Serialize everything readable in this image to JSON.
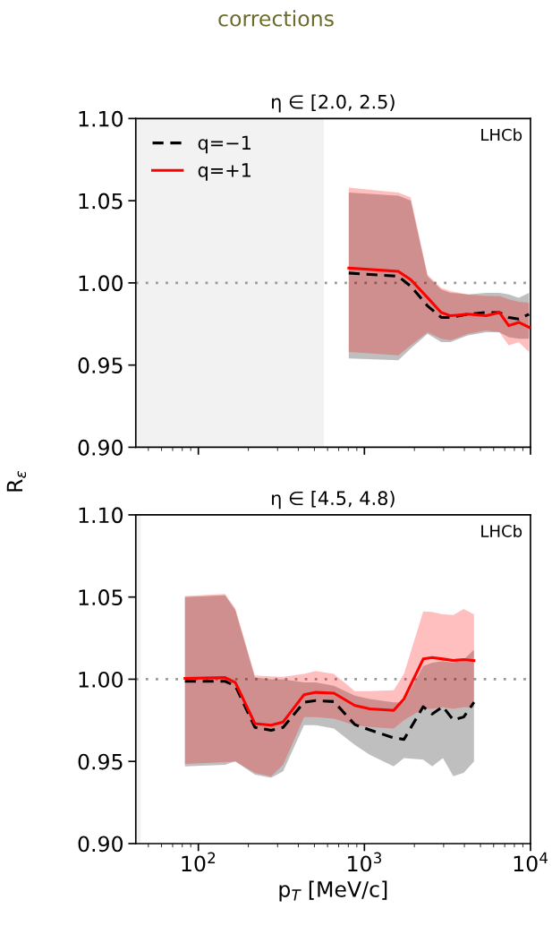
{
  "chart_data": [
    {
      "type": "line",
      "title": "η ∈ [2.0, 2.5)",
      "ylabel": "R$_{ε}$",
      "annotations": [
        "corrections",
        "LHCb"
      ],
      "xlim": [
        42,
        10000
      ],
      "ylim": [
        0.9,
        1.1
      ],
      "log": "x",
      "tick_labels": "y",
      "xticks": [
        100,
        1000,
        10000
      ],
      "yticks": [
        {
          "value": 0.9,
          "label": "0.90"
        },
        {
          "value": 0.95,
          "label": "0.95"
        },
        {
          "value": 1.0,
          "label": "1.00"
        },
        {
          "value": 1.05,
          "label": "1.05"
        },
        {
          "value": 1.1,
          "label": "1.10"
        }
      ],
      "legend": "top left",
      "ref_lines": [
        {
          "axis": "y",
          "value": 1.0,
          "color": "#999999",
          "line_style": "dotted"
        }
      ],
      "bands": [
        {
          "axis": "x",
          "from": 42,
          "to": 570,
          "color": "#f2f2f2"
        }
      ],
      "series": [
        {
          "name": "q=−1",
          "color": "#000000",
          "line_style": "dashed",
          "x": [
            805,
            1600,
            1900,
            2400,
            2900,
            3300,
            4200,
            5400,
            6500,
            7400,
            8500,
            9800
          ],
          "values": [
            1.006,
            1.004,
            0.998,
            0.986,
            0.979,
            0.979,
            0.981,
            0.982,
            0.982,
            0.979,
            0.978,
            0.981
          ],
          "lower": [
            0.954,
            0.953,
            0.96,
            0.969,
            0.964,
            0.964,
            0.968,
            0.97,
            0.97,
            0.967,
            0.966,
            0.966
          ],
          "upper": [
            1.055,
            1.053,
            1.05,
            1.004,
            0.996,
            0.994,
            0.993,
            0.994,
            0.994,
            0.993,
            0.991,
            0.994
          ]
        },
        {
          "name": "q=+1",
          "color": "#ff0000",
          "line_style": "solid",
          "x": [
            805,
            1600,
            1900,
            2400,
            2900,
            3300,
            4200,
            5400,
            6500,
            7400,
            8500,
            9800
          ],
          "values": [
            1.009,
            1.007,
            1.002,
            0.991,
            0.982,
            0.98,
            0.981,
            0.98,
            0.982,
            0.974,
            0.976,
            0.973
          ],
          "lower": [
            0.958,
            0.956,
            0.962,
            0.97,
            0.966,
            0.965,
            0.969,
            0.971,
            0.97,
            0.962,
            0.964,
            0.958
          ],
          "upper": [
            1.058,
            1.055,
            1.052,
            1.005,
            0.997,
            0.995,
            0.993,
            0.992,
            0.992,
            0.99,
            0.9885,
            0.988
          ]
        }
      ]
    },
    {
      "type": "line",
      "title": "η ∈ [4.5, 4.8)",
      "xlabel": "p$_{T}$ [MeV/c]",
      "annotations": [
        "LHCb"
      ],
      "xlim": [
        42,
        10000
      ],
      "ylim": [
        0.9,
        1.1
      ],
      "log": "x",
      "xticks": [
        {
          "value": 100,
          "label": "10$^{2}$"
        },
        {
          "value": 1000,
          "label": "10$^{3}$"
        },
        {
          "value": 10000,
          "label": "10$^{4}$"
        }
      ],
      "yticks": [
        {
          "value": 0.9,
          "label": "0.90"
        },
        {
          "value": 0.95,
          "label": "0.95"
        },
        {
          "value": 1.0,
          "label": "1.00"
        },
        {
          "value": 1.05,
          "label": "1.05"
        },
        {
          "value": 1.1,
          "label": "1.10"
        }
      ],
      "ref_lines": [
        {
          "axis": "y",
          "value": 1.0,
          "color": "#999999",
          "line_style": "dotted"
        }
      ],
      "bands": [
        {
          "axis": "x",
          "from": 42,
          "to": 45,
          "color": "#f2f2f2"
        }
      ],
      "series": [
        {
          "color": "#000000",
          "line_style": "dashed",
          "x": [
            83,
            145,
            167,
            219,
            274,
            324,
            433,
            510,
            655,
            875,
            1075,
            1500,
            1730,
            2260,
            2560,
            2970,
            3430,
            3960,
            4570
          ],
          "values": [
            0.9987,
            0.9987,
            0.996,
            0.9707,
            0.9689,
            0.9707,
            0.986,
            0.987,
            0.9864,
            0.9724,
            0.9692,
            0.9643,
            0.9634,
            0.9833,
            0.9788,
            0.9833,
            0.9752,
            0.977,
            0.986
          ],
          "lower": [
            0.947,
            0.948,
            0.95,
            0.942,
            0.94,
            0.944,
            0.972,
            0.972,
            0.97,
            0.96,
            0.954,
            0.947,
            0.952,
            0.951,
            0.947,
            0.952,
            0.941,
            0.943,
            0.95
          ],
          "upper": [
            1.05,
            1.051,
            1.042,
            1.001,
            1.0,
            1.0,
            0.998,
            0.998,
            0.996,
            0.99,
            0.988,
            0.986,
            0.986,
            1.008,
            1.01,
            1.011,
            1.01,
            1.012,
            1.018
          ]
        },
        {
          "color": "#ff0000",
          "line_style": "solid",
          "x": [
            83,
            145,
            167,
            219,
            274,
            324,
            433,
            510,
            655,
            875,
            1075,
            1500,
            1730,
            2260,
            2560,
            2970,
            3430,
            3960,
            4570
          ],
          "values": [
            1.0005,
            1.001,
            0.998,
            0.973,
            0.972,
            0.974,
            0.9906,
            0.992,
            0.9915,
            0.984,
            0.982,
            0.981,
            0.988,
            1.0123,
            1.0132,
            1.0123,
            1.0114,
            1.012,
            1.0114
          ],
          "lower": [
            0.9485,
            0.9495,
            0.95,
            0.943,
            0.9408,
            0.948,
            0.977,
            0.977,
            0.976,
            0.972,
            0.971,
            0.97,
            0.975,
            0.982,
            0.982,
            0.983,
            0.982,
            0.983,
            0.983
          ],
          "upper": [
            1.0507,
            1.0518,
            1.043,
            1.0023,
            1.0018,
            1.0015,
            1.0033,
            1.005,
            1.0033,
            0.9928,
            0.9928,
            0.9933,
            1.0033,
            1.0413,
            1.0409,
            1.0395,
            1.0391,
            1.0428,
            1.0395
          ]
        }
      ]
    }
  ]
}
